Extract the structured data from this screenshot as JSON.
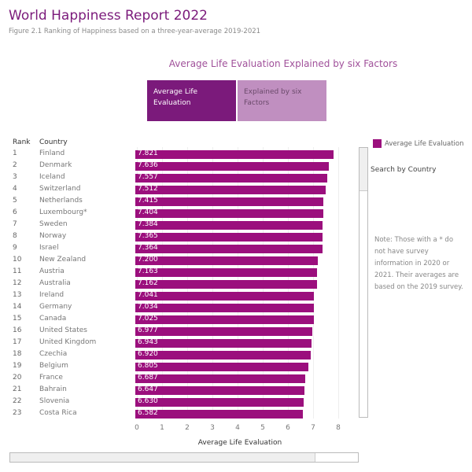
{
  "header": {
    "title": "World Happiness Report 2022",
    "subtitle": "Figure 2.1 Ranking of Happiness based on a three-year-average 2019-2021"
  },
  "tabs": [
    {
      "label": "Average Life Evaluation",
      "active": true
    },
    {
      "label": "Explained by six Factors",
      "active": false
    }
  ],
  "colors": {
    "bar": "#9b0f7d",
    "tab_active": "#7b1a7b",
    "tab_inactive": "#c08fc0",
    "title": "#7b1a7b"
  },
  "sidebar": {
    "legend": "Average Life Evaluation",
    "search_label": "Search by Country",
    "note": "Note: Those with a * do not have survey information in 2020 or 2021. Their averages are based on the 2019 survey."
  },
  "chart_data": {
    "type": "bar",
    "orientation": "horizontal",
    "title": "Average Life Evaluation Explained by six Factors",
    "xlabel": "Average Life Evaluation",
    "columns": {
      "rank": "Rank",
      "country": "Country"
    },
    "xlim": [
      0,
      8
    ],
    "xticks": [
      "0",
      "1",
      "2",
      "3",
      "4",
      "5",
      "6",
      "7",
      "8"
    ],
    "grid": true,
    "legend": "top-right",
    "ranks": [
      1,
      2,
      3,
      4,
      5,
      6,
      7,
      8,
      9,
      10,
      11,
      12,
      13,
      14,
      15,
      16,
      17,
      18,
      19,
      20,
      21,
      22,
      23
    ],
    "categories": [
      "Finland",
      "Denmark",
      "Iceland",
      "Switzerland",
      "Netherlands",
      "Luxembourg*",
      "Sweden",
      "Norway",
      "Israel",
      "New Zealand",
      "Austria",
      "Australia",
      "Ireland",
      "Germany",
      "Canada",
      "United States",
      "United Kingdom",
      "Czechia",
      "Belgium",
      "France",
      "Bahrain",
      "Slovenia",
      "Costa Rica"
    ],
    "values": [
      7.821,
      7.636,
      7.557,
      7.512,
      7.415,
      7.404,
      7.384,
      7.365,
      7.364,
      7.2,
      7.163,
      7.162,
      7.041,
      7.034,
      7.025,
      6.977,
      6.943,
      6.92,
      6.805,
      6.687,
      6.647,
      6.63,
      6.582
    ]
  }
}
